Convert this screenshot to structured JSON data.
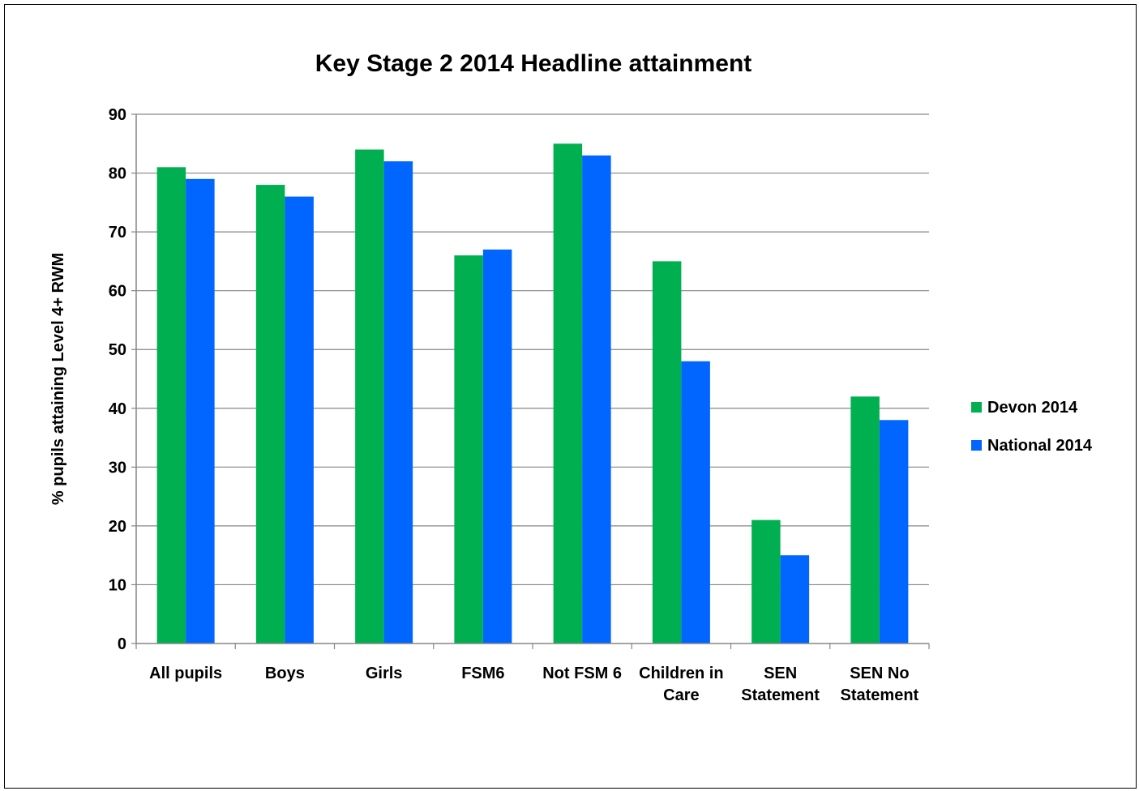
{
  "chart_data": {
    "type": "bar",
    "title": "Key Stage 2 2014 Headline attainment",
    "ylabel": "% pupils attaining Level 4+  RWM",
    "xlabel": "",
    "ylim": [
      0,
      90
    ],
    "yticks": [
      0,
      10,
      20,
      30,
      40,
      50,
      60,
      70,
      80,
      90
    ],
    "grid": true,
    "legend_position": "right",
    "categories": [
      [
        "All pupils"
      ],
      [
        "Boys"
      ],
      [
        "Girls"
      ],
      [
        "FSM6"
      ],
      [
        "Not FSM 6"
      ],
      [
        "Children in",
        "Care"
      ],
      [
        "SEN",
        "Statement"
      ],
      [
        "SEN No",
        "Statement"
      ]
    ],
    "series": [
      {
        "name": "Devon 2014",
        "color": "#00b050",
        "values": [
          81,
          78,
          84,
          66,
          85,
          65,
          21,
          42
        ]
      },
      {
        "name": "National 2014",
        "color": "#0066ff",
        "values": [
          79,
          76,
          82,
          67,
          83,
          48,
          15,
          38
        ]
      }
    ]
  }
}
